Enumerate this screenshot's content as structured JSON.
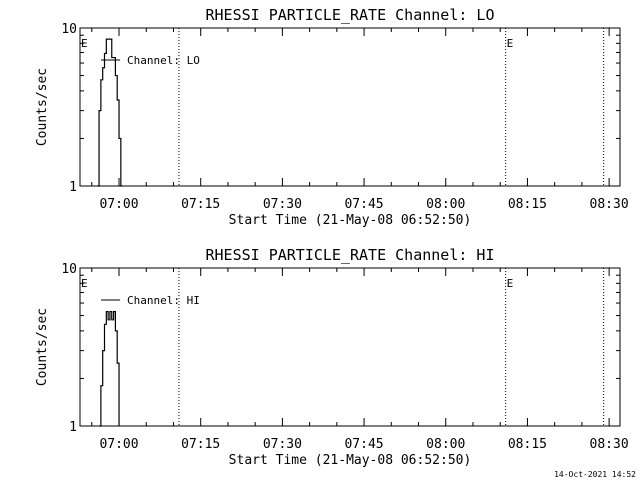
{
  "chart_data": [
    {
      "type": "line",
      "title": "RHESSI PARTICLE_RATE Channel: LO",
      "xlabel": "Start Time (21-May-08 06:52:50)",
      "ylabel": "Counts/sec",
      "yscale": "log",
      "ylim": [
        1,
        10
      ],
      "yticks": [
        "1",
        "10"
      ],
      "xlim": [
        "06:52:50",
        "08:32:00"
      ],
      "xticks": [
        "07:00",
        "07:15",
        "07:30",
        "07:45",
        "08:00",
        "08:15",
        "08:30"
      ],
      "legend": "top-left",
      "series": [
        {
          "name": "Channel: LO",
          "x": [
            "06:56:00",
            "06:56:20",
            "06:56:40",
            "06:57:00",
            "06:57:20",
            "06:57:40",
            "06:58:00",
            "06:58:20",
            "06:58:40",
            "06:59:00",
            "06:59:20",
            "06:59:40",
            "07:00:00",
            "07:00:20",
            "07:00:40"
          ],
          "y": [
            1.0,
            3.0,
            4.7,
            5.6,
            6.9,
            8.5,
            8.5,
            8.5,
            6.5,
            6.5,
            5.0,
            3.5,
            2.0,
            1.0,
            1.0
          ]
        }
      ],
      "markers": [
        {
          "label": "E",
          "x": "06:52:50"
        },
        {
          "label": "",
          "x": "07:11:00"
        },
        {
          "label": "E",
          "x": "08:11:00"
        },
        {
          "label": "",
          "x": "08:29:00"
        }
      ]
    },
    {
      "type": "line",
      "title": "RHESSI PARTICLE_RATE Channel: HI",
      "xlabel": "Start Time (21-May-08 06:52:50)",
      "ylabel": "Counts/sec",
      "yscale": "log",
      "ylim": [
        1,
        10
      ],
      "yticks": [
        "1",
        "10"
      ],
      "xlim": [
        "06:52:50",
        "08:32:00"
      ],
      "xticks": [
        "07:00",
        "07:15",
        "07:30",
        "07:45",
        "08:00",
        "08:15",
        "08:30"
      ],
      "legend": "top-left",
      "series": [
        {
          "name": "Channel: HI",
          "x": [
            "06:56:20",
            "06:56:40",
            "06:57:00",
            "06:57:20",
            "06:57:40",
            "06:58:00",
            "06:58:20",
            "06:58:40",
            "06:59:00",
            "06:59:20",
            "06:59:40",
            "07:00:00"
          ],
          "y": [
            1.0,
            1.8,
            3.0,
            4.4,
            5.3,
            4.7,
            5.3,
            4.7,
            5.3,
            4.0,
            2.5,
            1.0
          ]
        }
      ],
      "markers": [
        {
          "label": "E",
          "x": "06:52:50"
        },
        {
          "label": "",
          "x": "07:11:00"
        },
        {
          "label": "E",
          "x": "08:11:00"
        },
        {
          "label": "",
          "x": "08:29:00"
        }
      ]
    }
  ],
  "footer": {
    "timestamp": "14-Oct-2021 14:52"
  }
}
